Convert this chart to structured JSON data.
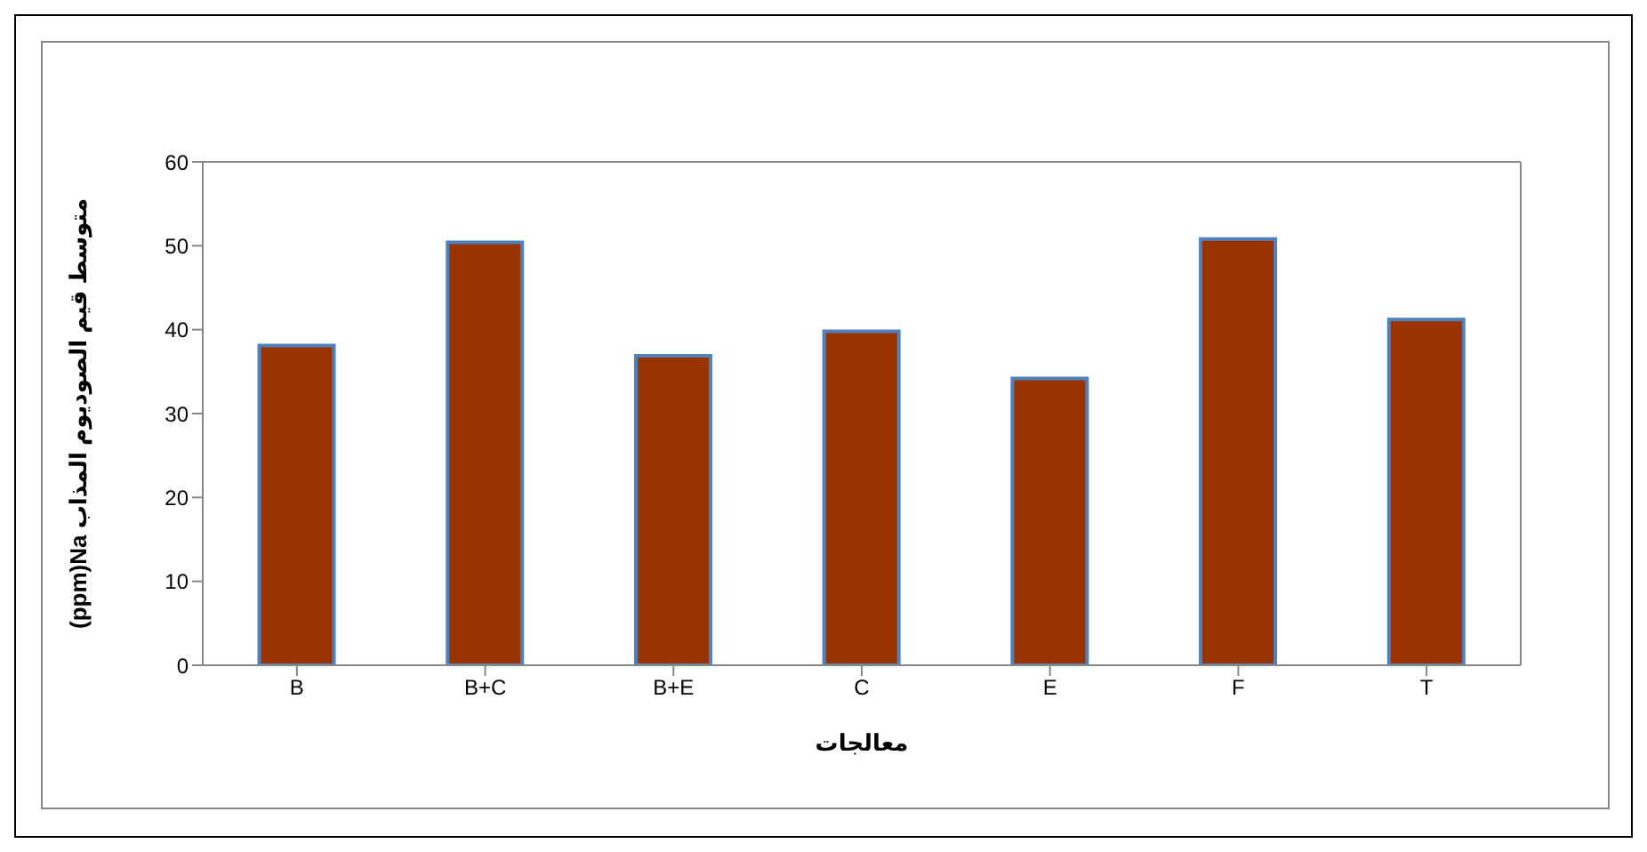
{
  "chart_data": {
    "type": "bar",
    "xlabel": "معالجات",
    "ylabel": "(ppm)Na متوسط قيم  الصوديوم المذاب",
    "categories": [
      "B",
      "B+C",
      "B+E",
      "C",
      "E",
      "F",
      "T"
    ],
    "values": [
      38.1,
      50.4,
      36.9,
      39.8,
      34.2,
      50.8,
      41.2
    ],
    "color": "#993300",
    "ylim": [
      0,
      60
    ],
    "yticks": [
      0,
      10,
      20,
      30,
      40,
      50,
      60
    ]
  }
}
